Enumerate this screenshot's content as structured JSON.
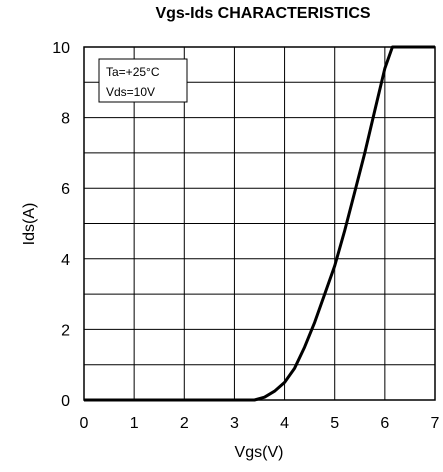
{
  "chart_data": {
    "type": "line",
    "title": "Vgs-Ids CHARACTERISTICS",
    "xlabel": "Vgs(V)",
    "ylabel": "Ids(A)",
    "xlim": [
      0,
      7
    ],
    "ylim": [
      0,
      10
    ],
    "x_ticks": [
      "0",
      "1",
      "2",
      "3",
      "4",
      "5",
      "6",
      "7"
    ],
    "y_ticks": [
      "0",
      "2",
      "4",
      "6",
      "8",
      "10"
    ],
    "grid": true,
    "annotation": [
      "Ta=+25°C",
      "Vds=10V"
    ],
    "series": [
      {
        "x": [
          0,
          3.4,
          3.6,
          3.8,
          4.0,
          4.2,
          4.4,
          4.6,
          4.8,
          5.0,
          5.2,
          5.4,
          5.6,
          5.8,
          6.0,
          6.15,
          7.0
        ],
        "y": [
          0,
          0,
          0.08,
          0.25,
          0.5,
          0.9,
          1.5,
          2.2,
          3.0,
          3.8,
          4.8,
          5.9,
          7.0,
          8.2,
          9.4,
          10,
          10
        ]
      }
    ]
  }
}
